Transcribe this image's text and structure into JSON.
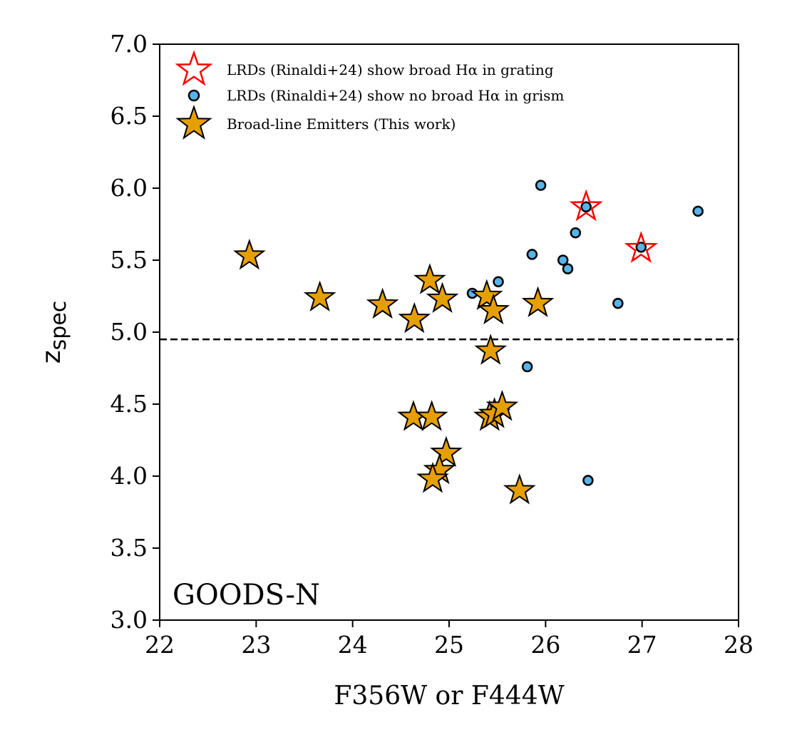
{
  "chart_data": {
    "type": "scatter",
    "xlabel": "F356W or F444W",
    "ylabel": "z",
    "ylabel_sub": "spec",
    "xlim": [
      22,
      28
    ],
    "ylim": [
      3.0,
      7.0
    ],
    "xticks": [
      "22",
      "23",
      "24",
      "25",
      "26",
      "27",
      "28"
    ],
    "yticks": [
      "3.0",
      "3.5",
      "4.0",
      "4.5",
      "5.0",
      "5.5",
      "6.0",
      "6.5",
      "7.0"
    ],
    "annotation": "GOODS-N",
    "hline": {
      "y": 4.95,
      "style": "dashed",
      "color": "#000000"
    },
    "legend_position": "upper-left",
    "series": [
      {
        "name": "LRDs (Rinaldi+24) show broad Hα in grating",
        "marker": "star-open",
        "edge_color": "#ff0000",
        "points": [
          {
            "x": 26.42,
            "y": 5.87
          },
          {
            "x": 26.99,
            "y": 5.58
          }
        ]
      },
      {
        "name": "LRDs (Rinaldi+24) show no broad Hα in grism",
        "marker": "circle",
        "fill_color": "#56b4e9",
        "edge_color": "#000000",
        "points": [
          {
            "x": 25.95,
            "y": 6.02
          },
          {
            "x": 26.42,
            "y": 5.87
          },
          {
            "x": 27.58,
            "y": 5.84
          },
          {
            "x": 26.31,
            "y": 5.69
          },
          {
            "x": 26.99,
            "y": 5.59
          },
          {
            "x": 25.86,
            "y": 5.54
          },
          {
            "x": 26.18,
            "y": 5.5
          },
          {
            "x": 26.23,
            "y": 5.44
          },
          {
            "x": 25.51,
            "y": 5.35
          },
          {
            "x": 25.24,
            "y": 5.27
          },
          {
            "x": 26.75,
            "y": 5.2
          },
          {
            "x": 25.81,
            "y": 4.76
          },
          {
            "x": 26.44,
            "y": 3.97
          }
        ]
      },
      {
        "name": "Broad-line Emitters (This work)",
        "marker": "star",
        "fill_color": "#e69f00",
        "edge_color": "#000000",
        "points": [
          {
            "x": 22.93,
            "y": 5.53
          },
          {
            "x": 23.66,
            "y": 5.24
          },
          {
            "x": 24.31,
            "y": 5.19
          },
          {
            "x": 24.64,
            "y": 5.09
          },
          {
            "x": 24.8,
            "y": 5.36
          },
          {
            "x": 24.93,
            "y": 5.23
          },
          {
            "x": 25.39,
            "y": 5.25
          },
          {
            "x": 25.46,
            "y": 5.15
          },
          {
            "x": 25.92,
            "y": 5.2
          },
          {
            "x": 25.43,
            "y": 4.87
          },
          {
            "x": 24.63,
            "y": 4.41
          },
          {
            "x": 24.82,
            "y": 4.41
          },
          {
            "x": 25.42,
            "y": 4.41
          },
          {
            "x": 25.47,
            "y": 4.43
          },
          {
            "x": 25.55,
            "y": 4.48
          },
          {
            "x": 24.97,
            "y": 4.16
          },
          {
            "x": 24.9,
            "y": 4.04
          },
          {
            "x": 24.83,
            "y": 3.98
          },
          {
            "x": 25.73,
            "y": 3.9
          }
        ]
      }
    ]
  }
}
